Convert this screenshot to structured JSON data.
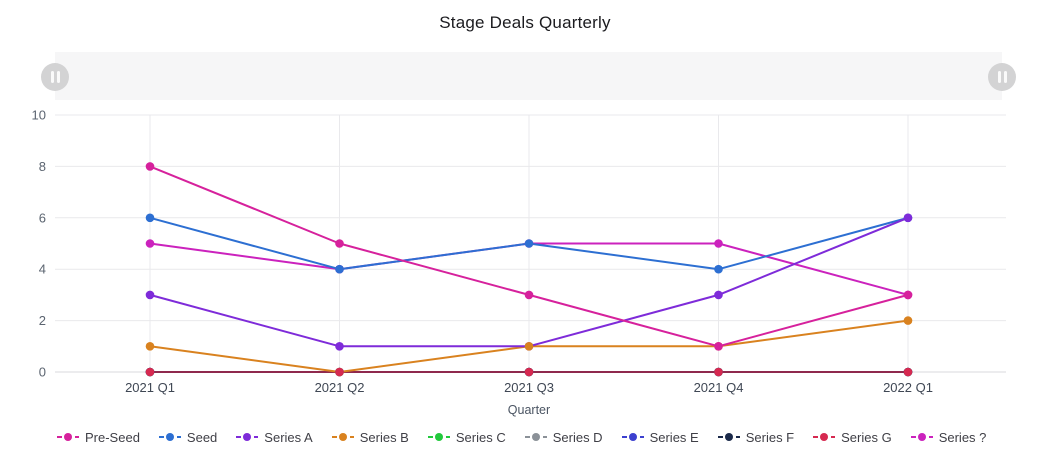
{
  "title": "Stage Deals Quarterly",
  "range_selector": {
    "track_color": "#f6f6f7",
    "handle_color": "#d3d3d4",
    "handle_icon": "pause-icon"
  },
  "colors": {
    "grid": "#e9e9ec",
    "zero_axis": "#d8d8dc",
    "y_tick_text": "#5b6470",
    "x_tick_text": "#3f4754",
    "axis_label_text": "#4b5563"
  },
  "chart_data": {
    "type": "line",
    "title": "Stage Deals Quarterly",
    "categories": [
      "2021 Q1",
      "2021 Q2",
      "2021 Q3",
      "2021 Q4",
      "2022 Q1"
    ],
    "xlabel": "Quarter",
    "ylabel": "",
    "ylim": [
      0,
      10
    ],
    "yticks": [
      0,
      2,
      4,
      6,
      8,
      10
    ],
    "grid": true,
    "legend_position": "bottom",
    "series": [
      {
        "name": "Pre-Seed",
        "color": "#d6219c",
        "values": [
          8,
          5,
          3,
          1,
          3
        ],
        "z_line": 9,
        "z_dot": 8
      },
      {
        "name": "Seed",
        "color": "#2d6fd2",
        "values": [
          6,
          4,
          5,
          4,
          6
        ],
        "z_line": 7,
        "z_dot": 5
      },
      {
        "name": "Series A",
        "color": "#7e2bd9",
        "values": [
          3,
          1,
          1,
          3,
          6
        ],
        "z_line": 8,
        "z_dot": 6
      },
      {
        "name": "Series B",
        "color": "#d9821f",
        "values": [
          1,
          0,
          1,
          1,
          2
        ],
        "z_line": 6,
        "z_dot": 7
      },
      {
        "name": "Series C",
        "color": "#22c93d",
        "values": [
          0,
          0,
          0,
          0,
          0
        ],
        "z_line": 0,
        "z_dot": 0
      },
      {
        "name": "Series D",
        "color": "#8b9198",
        "values": [
          0,
          0,
          0,
          0,
          0
        ],
        "z_line": 1,
        "z_dot": 1
      },
      {
        "name": "Series E",
        "color": "#3c40cf",
        "values": [
          0,
          0,
          0,
          0,
          0
        ],
        "z_line": 2,
        "z_dot": 2
      },
      {
        "name": "Series F",
        "color": "#1b2a4a",
        "values": [
          0,
          0,
          0,
          0,
          0
        ],
        "z_line": 3,
        "z_dot": 3
      },
      {
        "name": "Series G",
        "color": "#d62950",
        "values": [
          0,
          0,
          0,
          0,
          0
        ],
        "z_line": 4,
        "z_dot": 9,
        "line_opacity": 0.62
      },
      {
        "name": "Series ?",
        "color": "#cb22bd",
        "values": [
          5,
          4,
          5,
          5,
          3
        ],
        "z_line": 5,
        "z_dot": 4
      }
    ]
  }
}
